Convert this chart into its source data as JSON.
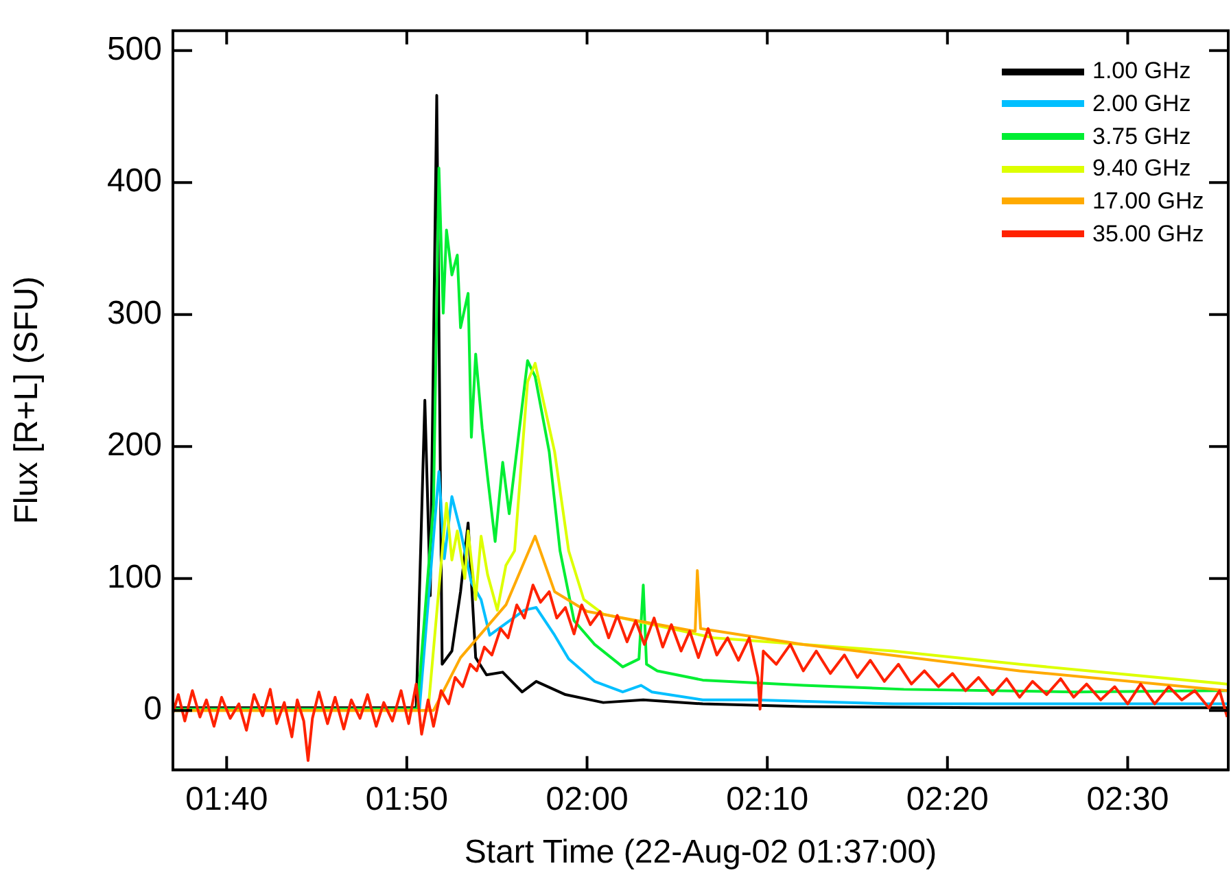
{
  "chart_data": {
    "type": "line",
    "xlabel": "Start Time (22-Aug-02 01:37:00)",
    "ylabel": "Flux [R+L] (SFU)",
    "xlim": [
      1.617,
      2.593
    ],
    "ylim": [
      -45,
      515
    ],
    "xticks": [
      {
        "value": 1.6667,
        "label": "01:40"
      },
      {
        "value": 1.8333,
        "label": "01:50"
      },
      {
        "value": 2.0,
        "label": "02:00"
      },
      {
        "value": 2.1667,
        "label": "02:10"
      },
      {
        "value": 2.3333,
        "label": "02:20"
      },
      {
        "value": 2.5,
        "label": "02:30"
      }
    ],
    "yticks": [
      0,
      100,
      200,
      300,
      400,
      500
    ],
    "grid": false,
    "legend": "top right",
    "marker": "none",
    "line_style": "solid",
    "series": [
      {
        "name": "1.00 GHz",
        "color": "#000000",
        "x": [
          1.617,
          1.842,
          1.85,
          1.855,
          1.861,
          1.866,
          1.875,
          1.883,
          1.89,
          1.897,
          1.907,
          1.922,
          1.94,
          1.953,
          1.98,
          2.015,
          2.052,
          2.107,
          2.2,
          2.367,
          2.592
        ],
        "values": [
          2,
          2,
          235,
          87,
          466,
          35,
          45,
          90,
          142,
          40,
          27,
          29,
          14,
          22,
          12,
          6,
          8,
          5,
          3,
          2,
          2
        ]
      },
      {
        "name": "2.00 GHz",
        "color": "#00bfff",
        "x": [
          1.617,
          1.845,
          1.863,
          1.868,
          1.875,
          1.883,
          1.893,
          1.902,
          1.91,
          1.925,
          1.942,
          1.953,
          1.97,
          1.983,
          2.007,
          2.033,
          2.05,
          2.06,
          2.107,
          2.155,
          2.283,
          2.592
        ],
        "values": [
          1,
          1,
          181,
          115,
          162,
          136,
          97,
          84,
          57,
          66,
          76,
          78,
          57,
          39,
          22,
          14,
          19,
          14,
          8,
          8,
          5,
          5
        ]
      },
      {
        "name": "3.75 GHz",
        "color": "#00ee33",
        "x": [
          1.617,
          1.843,
          1.858,
          1.863,
          1.867,
          1.87,
          1.875,
          1.88,
          1.883,
          1.89,
          1.893,
          1.897,
          1.903,
          1.908,
          1.915,
          1.922,
          1.928,
          1.945,
          1.952,
          1.965,
          1.975,
          1.988,
          2.007,
          2.033,
          2.048,
          2.052,
          2.055,
          2.065,
          2.107,
          2.2,
          2.293,
          2.45,
          2.592
        ],
        "values": [
          1,
          1,
          156,
          411,
          301,
          364,
          330,
          345,
          290,
          316,
          207,
          270,
          214,
          177,
          128,
          188,
          149,
          265,
          253,
          196,
          121,
          68,
          50,
          33,
          39,
          95,
          35,
          30,
          23,
          19,
          16,
          14,
          15
        ]
      },
      {
        "name": "9.40 GHz",
        "color": "#ddff00",
        "x": [
          1.617,
          1.853,
          1.87,
          1.875,
          1.88,
          1.887,
          1.89,
          1.897,
          1.902,
          1.908,
          1.917,
          1.925,
          1.933,
          1.945,
          1.952,
          1.96,
          1.97,
          1.983,
          1.997,
          2.015,
          2.117,
          2.283,
          2.4,
          2.592
        ],
        "values": [
          0,
          0,
          157,
          114,
          136,
          100,
          136,
          84,
          132,
          103,
          76,
          110,
          121,
          249,
          263,
          233,
          196,
          121,
          84,
          73,
          55,
          45,
          35,
          20
        ]
      },
      {
        "name": "17.00 GHz",
        "color": "#ffaa00",
        "x": [
          1.617,
          1.858,
          1.883,
          1.925,
          1.952,
          1.97,
          2.0,
          2.1,
          2.102,
          2.105,
          2.2,
          2.4,
          2.592
        ],
        "values": [
          0,
          0,
          40,
          80,
          132,
          90,
          75,
          60,
          106,
          62,
          50,
          30,
          15
        ]
      },
      {
        "name": "35.00 GHz",
        "color": "#ff2200",
        "x": [
          1.617,
          1.622,
          1.628,
          1.635,
          1.642,
          1.648,
          1.655,
          1.662,
          1.67,
          1.678,
          1.685,
          1.692,
          1.7,
          1.707,
          1.713,
          1.72,
          1.727,
          1.732,
          1.738,
          1.742,
          1.746,
          1.752,
          1.76,
          1.767,
          1.775,
          1.782,
          1.79,
          1.797,
          1.805,
          1.812,
          1.82,
          1.828,
          1.835,
          1.842,
          1.847,
          1.853,
          1.858,
          1.865,
          1.872,
          1.878,
          1.885,
          1.892,
          1.898,
          1.905,
          1.912,
          1.92,
          1.927,
          1.935,
          1.942,
          1.95,
          1.957,
          1.965,
          1.972,
          1.98,
          1.988,
          1.995,
          2.003,
          2.012,
          2.02,
          2.028,
          2.037,
          2.045,
          2.053,
          2.062,
          2.07,
          2.078,
          2.087,
          2.095,
          2.103,
          2.112,
          2.12,
          2.13,
          2.14,
          2.15,
          2.158,
          2.16,
          2.163,
          2.175,
          2.188,
          2.2,
          2.212,
          2.225,
          2.238,
          2.25,
          2.262,
          2.275,
          2.288,
          2.3,
          2.312,
          2.325,
          2.338,
          2.35,
          2.362,
          2.375,
          2.388,
          2.4,
          2.412,
          2.425,
          2.438,
          2.45,
          2.462,
          2.475,
          2.488,
          2.5,
          2.512,
          2.525,
          2.538,
          2.55,
          2.562,
          2.575,
          2.585,
          2.592
        ],
        "values": [
          -2,
          12,
          -8,
          15,
          -5,
          8,
          -12,
          10,
          -6,
          5,
          -15,
          12,
          -4,
          16,
          -10,
          6,
          -20,
          8,
          -8,
          -38,
          -6,
          14,
          -10,
          10,
          -14,
          8,
          -6,
          12,
          -12,
          6,
          -8,
          15,
          -10,
          20,
          -18,
          8,
          -12,
          15,
          5,
          25,
          18,
          35,
          30,
          48,
          42,
          62,
          55,
          80,
          70,
          95,
          82,
          90,
          70,
          78,
          58,
          80,
          65,
          75,
          55,
          72,
          52,
          68,
          50,
          70,
          48,
          65,
          45,
          60,
          40,
          62,
          42,
          55,
          38,
          55,
          25,
          1,
          45,
          35,
          50,
          30,
          45,
          28,
          42,
          25,
          38,
          22,
          35,
          20,
          30,
          18,
          28,
          15,
          25,
          12,
          24,
          10,
          22,
          12,
          24,
          10,
          20,
          8,
          18,
          5,
          20,
          5,
          18,
          8,
          15,
          2,
          15,
          -5
        ]
      }
    ]
  }
}
